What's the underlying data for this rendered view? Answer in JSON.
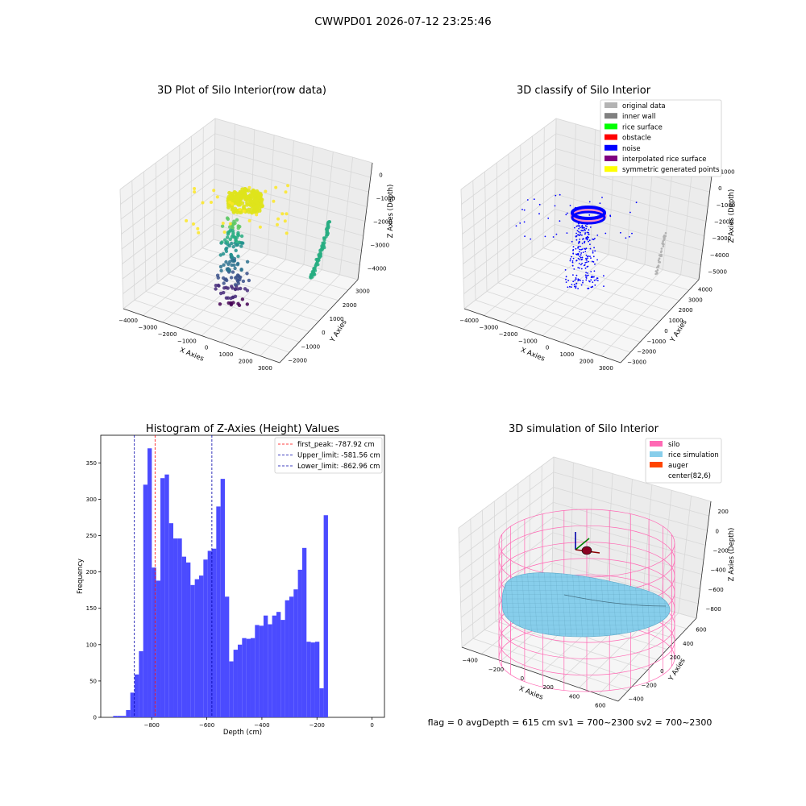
{
  "figure": {
    "suptitle": "CWWPD01 2026-07-12 23:25:46",
    "footer": "flag = 0     avgDepth = 615 cm  sv1 = 700~2300  sv2 = 700~2300"
  },
  "colors": {
    "histogram": "#4b4bff",
    "first_peak": "#ff0000",
    "limits": "#0000aa",
    "original_data": "#b3b3b3",
    "inner_wall": "#808080",
    "rice_surface": "#00ff00",
    "obstacle": "#ff0000",
    "noise": "#0000ff",
    "interpolated": "#800080",
    "symmetric": "#ffff00",
    "silo": "#ff69b4",
    "rice_sim": "#87ceeb",
    "auger": "#ff4500"
  },
  "chart_data": [
    {
      "type": "scatter",
      "title": "3D Plot of Silo Interior(row data)",
      "xlabel": "X Axies",
      "ylabel": "Y Axies",
      "zlabel": "Z Axies (Depth)",
      "x_ticks": [
        "−4000",
        "−3000",
        "−2000",
        "−1000",
        "0",
        "1000",
        "2000",
        "3000"
      ],
      "y_ticks": [
        "−2000",
        "−1000",
        "0",
        "1000",
        "2000",
        "3000"
      ],
      "z_ticks": [
        "−4000",
        "−3000",
        "−2000",
        "−1000",
        "0"
      ]
    },
    {
      "type": "scatter",
      "title": "3D classify of Silo Interior",
      "xlabel": "X Axies",
      "ylabel": "Y Axies",
      "zlabel": "Z Axies (Depth)",
      "x_ticks": [
        "−4000",
        "−3000",
        "−2000",
        "−1000",
        "0",
        "1000",
        "2000",
        "3000"
      ],
      "y_ticks": [
        "−3000",
        "−2000",
        "−1000",
        "0",
        "1000",
        "2000",
        "3000",
        "4000"
      ],
      "z_ticks": [
        "−5000",
        "−4000",
        "−3000",
        "−2000",
        "−1000",
        "0",
        "1000"
      ],
      "legend": [
        "original data",
        "inner wall",
        "rice surface",
        "obstacle",
        "noise",
        "interpolated rice surface",
        "symmetric generated points"
      ],
      "legend_position": "top-right"
    },
    {
      "type": "bar",
      "title": "Histogram of Z-Axies (Height) Values",
      "xlabel": "Depth (cm)",
      "ylabel": "Frequency",
      "xlim": [
        -985,
        45
      ],
      "ylim": [
        0,
        388
      ],
      "x_ticks": [
        -800,
        -600,
        -400,
        -200,
        0
      ],
      "x_tick_labels": [
        "−800",
        "−600",
        "−400",
        "−200",
        "0"
      ],
      "y_ticks": [
        0,
        50,
        100,
        150,
        200,
        250,
        300,
        350
      ],
      "bin_start": -940,
      "bin_width": 15.6,
      "values": [
        2,
        2,
        2,
        10,
        34,
        59,
        91,
        320,
        370,
        206,
        188,
        329,
        334,
        267,
        246,
        246,
        221,
        213,
        182,
        190,
        195,
        217,
        229,
        232,
        290,
        328,
        166,
        77,
        93,
        100,
        109,
        108,
        109,
        127,
        126,
        140,
        128,
        140,
        145,
        134,
        161,
        166,
        176,
        203,
        233,
        104,
        103,
        104,
        40,
        278
      ],
      "lines": [
        {
          "label": "first_peak: -787.92 cm",
          "x": -787.92,
          "color": "#ff0000"
        },
        {
          "label": "Upper_limit: -581.56 cm",
          "x": -581.56,
          "color": "#0000aa"
        },
        {
          "label": "Lower_limit: -862.96 cm",
          "x": -862.96,
          "color": "#0000aa"
        }
      ],
      "legend_position": "top-right"
    },
    {
      "type": "scatter",
      "title": "3D simulation of Silo Interior",
      "xlabel": "X Axies",
      "ylabel": "Y Axies",
      "zlabel": "Z Axies (Depth)",
      "x_ticks": [
        "−400",
        "−200",
        "0",
        "200",
        "400",
        "600"
      ],
      "y_ticks": [
        "−400",
        "−200",
        "0",
        "200",
        "400",
        "600"
      ],
      "z_ticks": [
        "−800",
        "−600",
        "−400",
        "−200",
        "0",
        "200"
      ],
      "legend": [
        "silo",
        "rice simulation",
        "auger",
        "center(82,6)"
      ],
      "legend_position": "top-right"
    }
  ]
}
